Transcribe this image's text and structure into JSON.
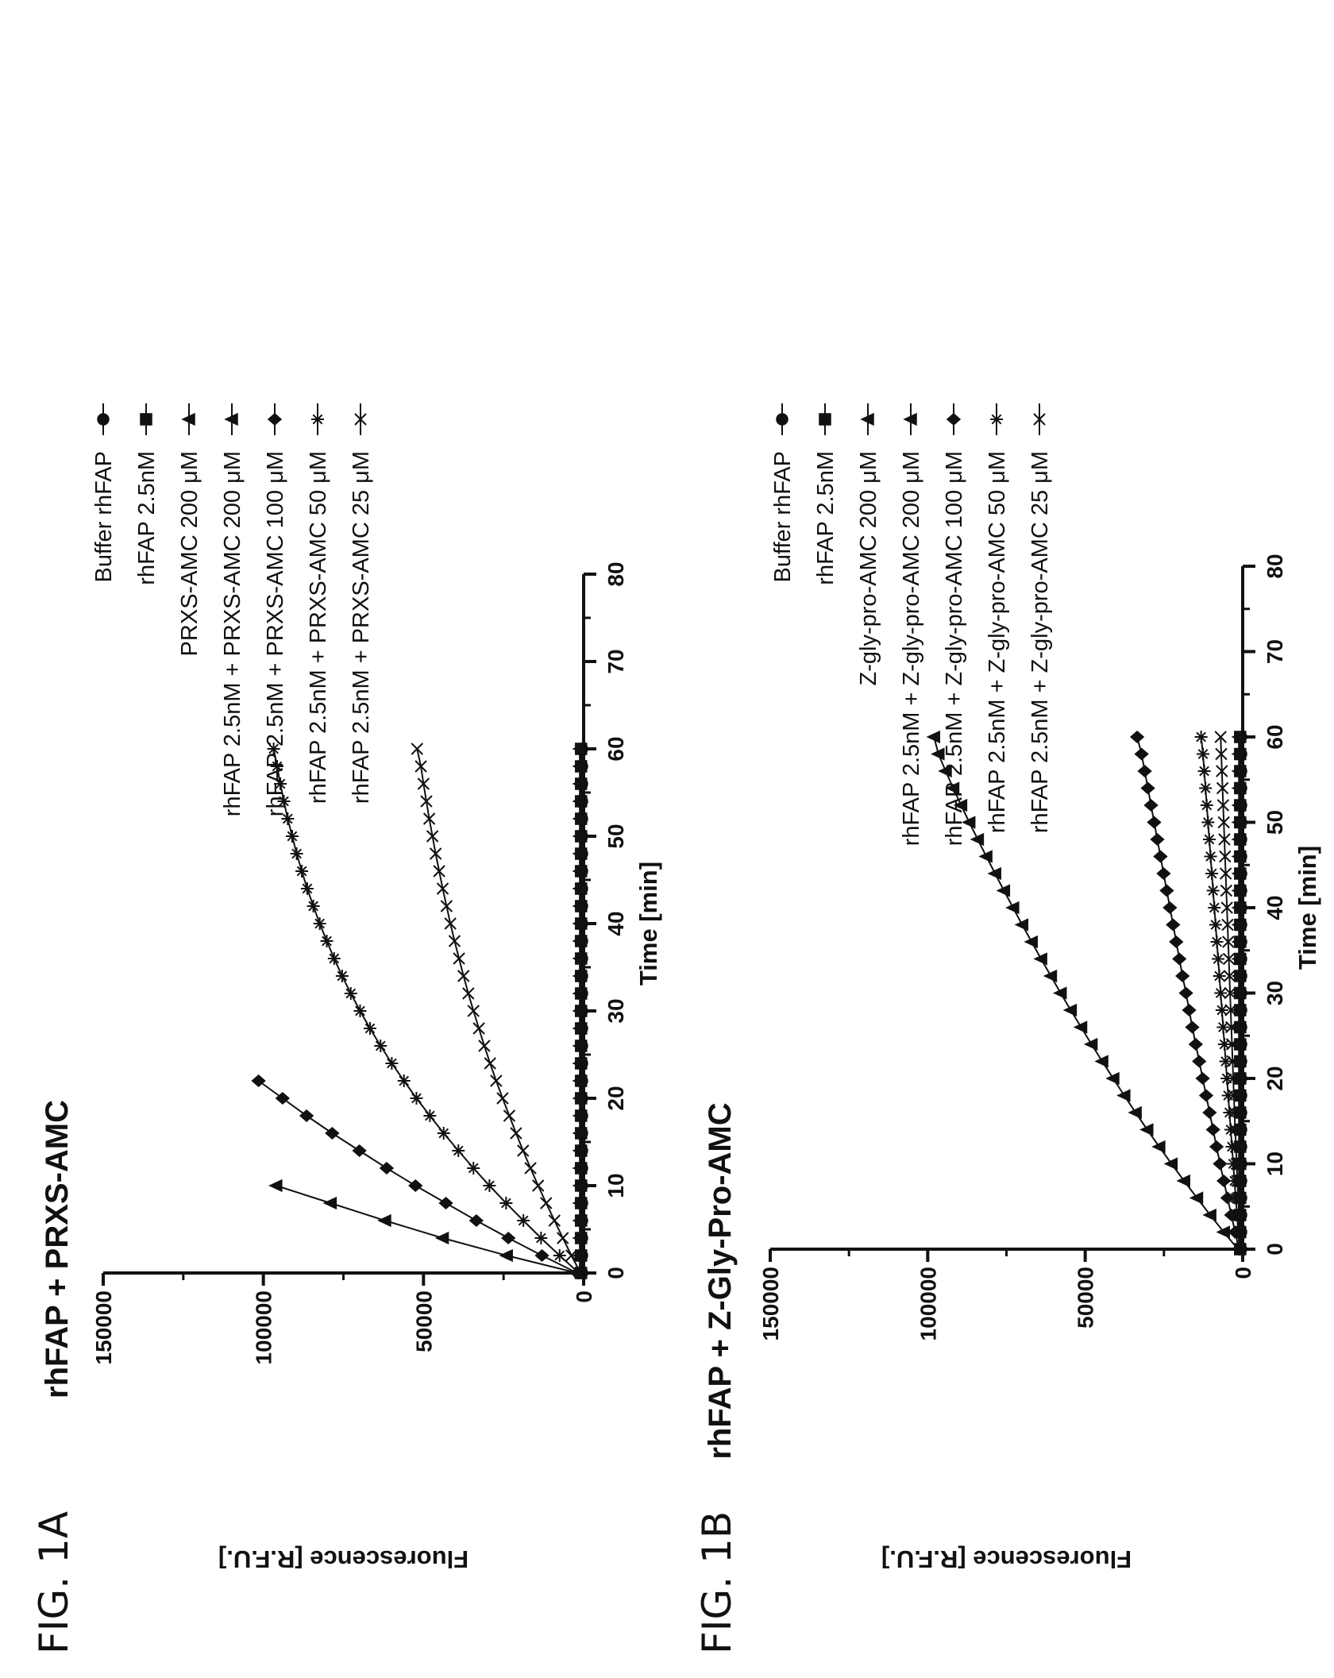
{
  "chart_data": [
    {
      "type": "scatter",
      "figure_label": "FIG. 1A",
      "title": "rhFAP + PRXS-AMC",
      "xlabel": "Time [min]",
      "ylabel": "Fluorescence [R.F.U.]",
      "xlim": [
        0,
        80
      ],
      "ylim": [
        0,
        150000
      ],
      "xticks": [
        "0",
        "10",
        "20",
        "30",
        "40",
        "50",
        "60",
        "70",
        "80"
      ],
      "yticks": [
        "0",
        "50000",
        "100000",
        "150000"
      ],
      "legend_position": "right",
      "series": [
        {
          "name": "Buffer rhFAP",
          "marker": "circle",
          "x": [
            0,
            60
          ],
          "y": [
            500,
            500
          ]
        },
        {
          "name": "rhFAP 2.5nM",
          "marker": "square",
          "x": [
            0,
            60
          ],
          "y": [
            800,
            800
          ]
        },
        {
          "name": "PRXS-AMC 200 μM",
          "marker": "triangle-up",
          "x": [
            0,
            60
          ],
          "y": [
            1200,
            1200
          ]
        },
        {
          "name": "rhFAP 2.5nM + PRXS-AMC 200 μM",
          "marker": "triangle-right",
          "x": [
            0,
            2,
            4,
            6,
            8,
            10
          ],
          "y": [
            2000,
            24000,
            44000,
            62000,
            79000,
            96000
          ]
        },
        {
          "name": "rhFAP 2.5nM + PRXS-AMC 100 μM",
          "marker": "diamond",
          "x": [
            0,
            2,
            4,
            6,
            8,
            10,
            12,
            14,
            16,
            18,
            20,
            22
          ],
          "y": [
            2000,
            13000,
            23500,
            33500,
            43000,
            52500,
            61500,
            70000,
            78500,
            86500,
            94000,
            101500
          ]
        },
        {
          "name": "rhFAP 2.5nM + PRXS-AMC 50 μM",
          "marker": "asterisk",
          "x": [
            0,
            2,
            4,
            6,
            8,
            10,
            12,
            14,
            16,
            18,
            20,
            22,
            24,
            26,
            28,
            30,
            32,
            34,
            36,
            38,
            40,
            42,
            44,
            46,
            48,
            50,
            52,
            54,
            56,
            58,
            60
          ],
          "y": [
            1500,
            7500,
            13300,
            18800,
            24200,
            29400,
            34400,
            39100,
            43700,
            48000,
            52200,
            56100,
            59900,
            63400,
            66700,
            69800,
            72700,
            75400,
            77900,
            80200,
            82400,
            84400,
            86300,
            88000,
            89600,
            91000,
            92400,
            93600,
            94700,
            95700,
            96800
          ]
        },
        {
          "name": "rhFAP 2.5nM + PRXS-AMC 25 μM",
          "marker": "x",
          "x": [
            0,
            2,
            4,
            6,
            8,
            10,
            12,
            14,
            16,
            18,
            20,
            22,
            24,
            26,
            28,
            30,
            32,
            34,
            36,
            38,
            40,
            42,
            44,
            46,
            48,
            50,
            52,
            54,
            56,
            58,
            60
          ],
          "y": [
            1000,
            3800,
            6500,
            9100,
            11700,
            14200,
            16600,
            18900,
            21100,
            23200,
            25300,
            27300,
            29200,
            31000,
            32700,
            34400,
            36000,
            37500,
            38900,
            40300,
            41600,
            42800,
            44000,
            45100,
            46200,
            47200,
            48200,
            49100,
            50000,
            50800,
            52000
          ]
        }
      ]
    },
    {
      "type": "scatter",
      "figure_label": "FIG. 1B",
      "title": "rhFAP + Z-Gly-Pro-AMC",
      "xlabel": "Time [min]",
      "ylabel": "Fluorescence [R.F.U.]",
      "xlim": [
        0,
        80
      ],
      "ylim": [
        0,
        150000
      ],
      "xticks": [
        "0",
        "10",
        "20",
        "30",
        "40",
        "50",
        "60",
        "70",
        "80"
      ],
      "yticks": [
        "0",
        "50000",
        "100000",
        "150000"
      ],
      "legend_position": "right",
      "series": [
        {
          "name": "Buffer rhFAP",
          "marker": "circle",
          "x": [
            0,
            60
          ],
          "y": [
            500,
            500
          ]
        },
        {
          "name": "rhFAP 2.5nM",
          "marker": "square",
          "x": [
            0,
            60
          ],
          "y": [
            800,
            800
          ]
        },
        {
          "name": "Z-gly-pro-AMC 200 μM",
          "marker": "triangle-up",
          "x": [
            0,
            60
          ],
          "y": [
            1200,
            1200
          ]
        },
        {
          "name": "rhFAP 2.5nM + Z-gly-pro-AMC 200 μM",
          "marker": "triangle-right",
          "x": [
            0,
            2,
            4,
            6,
            8,
            10,
            12,
            14,
            16,
            18,
            20,
            22,
            24,
            26,
            28,
            30,
            32,
            34,
            36,
            38,
            40,
            42,
            44,
            46,
            48,
            50,
            52,
            54,
            56,
            58,
            60
          ],
          "y": [
            1500,
            6000,
            10300,
            14500,
            18600,
            22600,
            26500,
            30300,
            34000,
            37600,
            41100,
            44600,
            48000,
            51300,
            54600,
            57800,
            60900,
            64000,
            67000,
            70000,
            72900,
            75800,
            78600,
            81400,
            84100,
            86800,
            89400,
            91900,
            94300,
            96600,
            98000
          ]
        },
        {
          "name": "rhFAP 2.5nM + Z-gly-pro-AMC 100 μM",
          "marker": "diamond",
          "x": [
            0,
            2,
            4,
            6,
            8,
            10,
            12,
            14,
            16,
            18,
            20,
            22,
            24,
            26,
            28,
            30,
            32,
            34,
            36,
            38,
            40,
            42,
            44,
            46,
            48,
            50,
            52,
            54,
            56,
            58,
            60
          ],
          "y": [
            1200,
            2400,
            3600,
            4800,
            6000,
            7200,
            8300,
            9400,
            10500,
            11600,
            12700,
            13800,
            14900,
            16000,
            17000,
            18000,
            19100,
            20100,
            21100,
            22100,
            23100,
            24100,
            25100,
            26100,
            27100,
            28100,
            29100,
            30100,
            31100,
            32100,
            33500
          ]
        },
        {
          "name": "rhFAP 2.5nM + Z-gly-pro-AMC 50 μM",
          "marker": "asterisk",
          "x": [
            0,
            2,
            4,
            6,
            8,
            10,
            12,
            14,
            16,
            18,
            20,
            22,
            24,
            26,
            28,
            30,
            32,
            34,
            36,
            38,
            40,
            42,
            44,
            46,
            48,
            50,
            52,
            54,
            56,
            58,
            60
          ],
          "y": [
            1000,
            1400,
            1800,
            2200,
            2600,
            3000,
            3400,
            3800,
            4200,
            4600,
            5000,
            5400,
            5800,
            6200,
            6600,
            7000,
            7400,
            7800,
            8200,
            8600,
            9000,
            9400,
            9800,
            10200,
            10600,
            11000,
            11400,
            11800,
            12200,
            12600,
            13200
          ]
        },
        {
          "name": "rhFAP 2.5nM + Z-gly-pro-AMC 25 μM",
          "marker": "x",
          "x": [
            0,
            2,
            4,
            6,
            8,
            10,
            12,
            14,
            16,
            18,
            20,
            22,
            24,
            26,
            28,
            30,
            32,
            34,
            36,
            38,
            40,
            42,
            44,
            46,
            48,
            50,
            52,
            54,
            56,
            58,
            60
          ],
          "y": [
            800,
            1000,
            1200,
            1400,
            1700,
            1900,
            2100,
            2400,
            2600,
            2800,
            3000,
            3200,
            3400,
            3600,
            3800,
            4000,
            4200,
            4400,
            4600,
            4800,
            5000,
            5200,
            5400,
            5600,
            5800,
            6000,
            6200,
            6400,
            6600,
            6800,
            7000
          ]
        }
      ]
    }
  ]
}
